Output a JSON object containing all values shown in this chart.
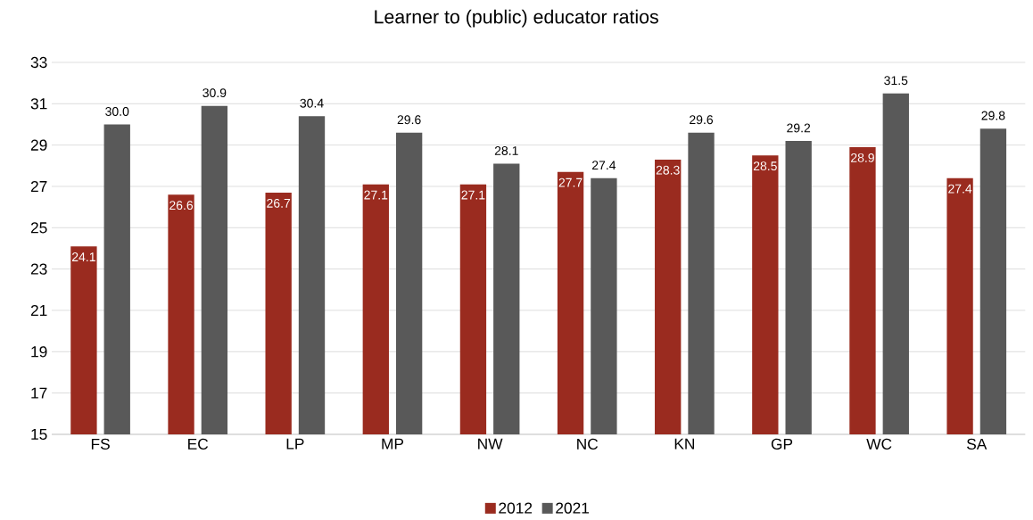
{
  "chart_data": {
    "type": "bar",
    "title": "Learner to (public) educator ratios",
    "categories": [
      "FS",
      "EC",
      "LP",
      "MP",
      "NW",
      "NC",
      "KN",
      "GP",
      "WC",
      "SA"
    ],
    "series": [
      {
        "name": "2012",
        "color": "#9a2b1f",
        "values": [
          24.1,
          26.6,
          26.7,
          27.1,
          27.1,
          27.7,
          28.3,
          28.5,
          28.9,
          27.4
        ],
        "value_labels": [
          "24.1",
          "26.6",
          "26.7",
          "27.1",
          "27.1",
          "27.7",
          "28.3",
          "28.5",
          "28.9",
          "27.4"
        ]
      },
      {
        "name": "2021",
        "color": "#595959",
        "values": [
          30.0,
          30.9,
          30.4,
          29.6,
          28.1,
          27.4,
          29.6,
          29.2,
          31.5,
          29.8
        ],
        "value_labels": [
          "30.0",
          "30.9",
          "30.4",
          "29.6",
          "28.1",
          "27.4",
          "29.6",
          "29.2",
          "31.5",
          "29.8"
        ]
      }
    ],
    "ylim": [
      15,
      33
    ],
    "yticks": [
      15,
      17,
      19,
      21,
      23,
      25,
      27,
      29,
      31,
      33
    ],
    "grid": "y",
    "legend": "bottom"
  }
}
